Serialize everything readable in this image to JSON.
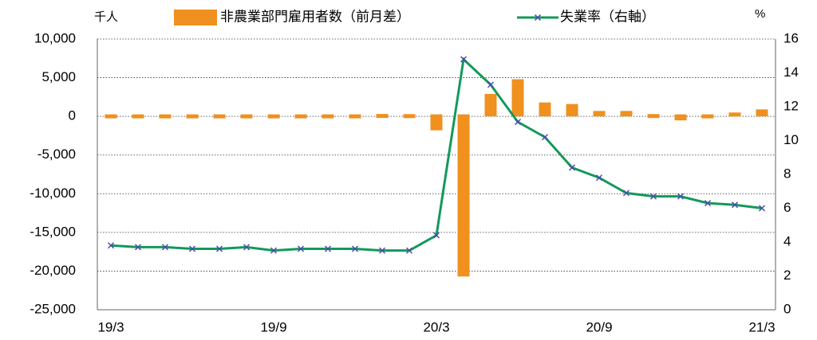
{
  "chart_data": {
    "type": "bar_line",
    "left_unit": "千人",
    "right_unit": "%",
    "categories": [
      "19/3",
      null,
      null,
      null,
      null,
      null,
      "19/9",
      null,
      null,
      null,
      null,
      null,
      "20/3",
      null,
      null,
      null,
      null,
      null,
      "20/9",
      null,
      null,
      null,
      null,
      null,
      "21/3"
    ],
    "series": [
      {
        "name": "非農業部門雇用者数（前月差）",
        "type": "bar",
        "color": "#f0901e",
        "values": [
          190,
          230,
          90,
          180,
          180,
          200,
          200,
          180,
          260,
          180,
          310,
          290,
          -1800,
          -20700,
          2900,
          4800,
          1800,
          1600,
          700,
          700,
          300,
          -300,
          200,
          500,
          900
        ]
      },
      {
        "name": "失業率（右軸）",
        "type": "line",
        "axis": "y2",
        "color": "#12995a",
        "marker_color": "#4a4ab0",
        "values": [
          3.8,
          3.7,
          3.7,
          3.6,
          3.6,
          3.7,
          3.5,
          3.6,
          3.6,
          3.6,
          3.5,
          3.5,
          4.4,
          14.8,
          13.3,
          11.1,
          10.2,
          8.4,
          7.8,
          6.9,
          6.7,
          6.7,
          6.3,
          6.2,
          6.0
        ]
      }
    ],
    "ylim": [
      -25000,
      10000
    ],
    "yticks": [
      {
        "value": -25000,
        "label": "-25,000"
      },
      {
        "value": -20000,
        "label": "-20,000"
      },
      {
        "value": -15000,
        "label": "-15,000"
      },
      {
        "value": -10000,
        "label": "-10,000"
      },
      {
        "value": -5000,
        "label": "-5,000"
      },
      0,
      {
        "value": 5000,
        "label": "5,000"
      },
      {
        "value": 10000,
        "label": "10,000"
      }
    ],
    "y2lim": [
      0,
      16
    ],
    "y2ticks": [
      0,
      2,
      4,
      6,
      8,
      10,
      12,
      14,
      16
    ],
    "grid": true
  }
}
